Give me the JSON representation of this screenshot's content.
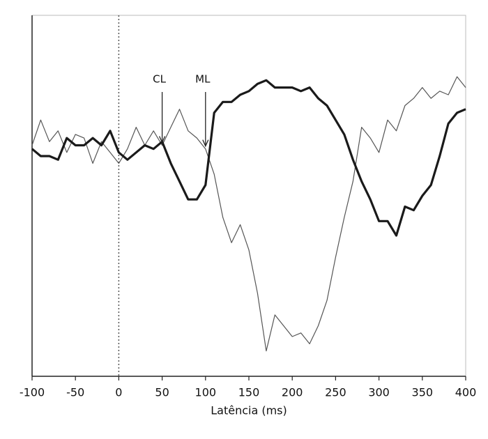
{
  "chart_data": {
    "type": "line",
    "x_label": "Latência (ms)",
    "x": [
      -100,
      -90,
      -80,
      -70,
      -60,
      -50,
      -40,
      -30,
      -20,
      -10,
      0,
      10,
      20,
      30,
      40,
      50,
      60,
      70,
      80,
      90,
      100,
      110,
      120,
      130,
      140,
      150,
      160,
      170,
      180,
      190,
      200,
      210,
      220,
      230,
      240,
      250,
      260,
      270,
      280,
      290,
      300,
      310,
      320,
      330,
      340,
      350,
      360,
      370,
      380,
      390,
      400
    ],
    "series": [
      {
        "color": "#555555",
        "width": 1.2,
        "values": [
          64,
          71,
          65,
          68,
          62,
          67,
          66,
          59,
          65,
          62,
          59,
          63,
          69,
          64,
          68,
          64,
          69,
          74,
          68,
          66,
          63,
          56,
          44,
          37,
          42,
          35,
          23,
          7,
          17,
          14,
          11,
          12,
          9,
          14,
          21,
          33,
          44,
          54,
          69,
          66,
          62,
          71,
          68,
          75,
          77,
          80,
          77,
          79,
          78,
          83,
          80
        ]
      },
      {
        "color": "#1a1a1a",
        "width": 3.2,
        "values": [
          63,
          61,
          61,
          60,
          66,
          64,
          64,
          66,
          64,
          68,
          62,
          60,
          62,
          64,
          63,
          65,
          59,
          54,
          49,
          49,
          53,
          73,
          76,
          76,
          78,
          79,
          81,
          82,
          80,
          80,
          80,
          79,
          80,
          77,
          75,
          71,
          67,
          60,
          54,
          49,
          43,
          43,
          39,
          47,
          46,
          50,
          53,
          61,
          70,
          73,
          74
        ]
      }
    ],
    "annotations": [
      {
        "text": "CL",
        "x": 50
      },
      {
        "text": "ML",
        "x": 100
      }
    ],
    "xlim": [
      -100,
      400
    ],
    "ylim": [
      0,
      100
    ],
    "xticks": [
      -100,
      -50,
      0,
      50,
      100,
      150,
      200,
      250,
      300,
      350,
      400
    ],
    "zero_line": 0
  }
}
